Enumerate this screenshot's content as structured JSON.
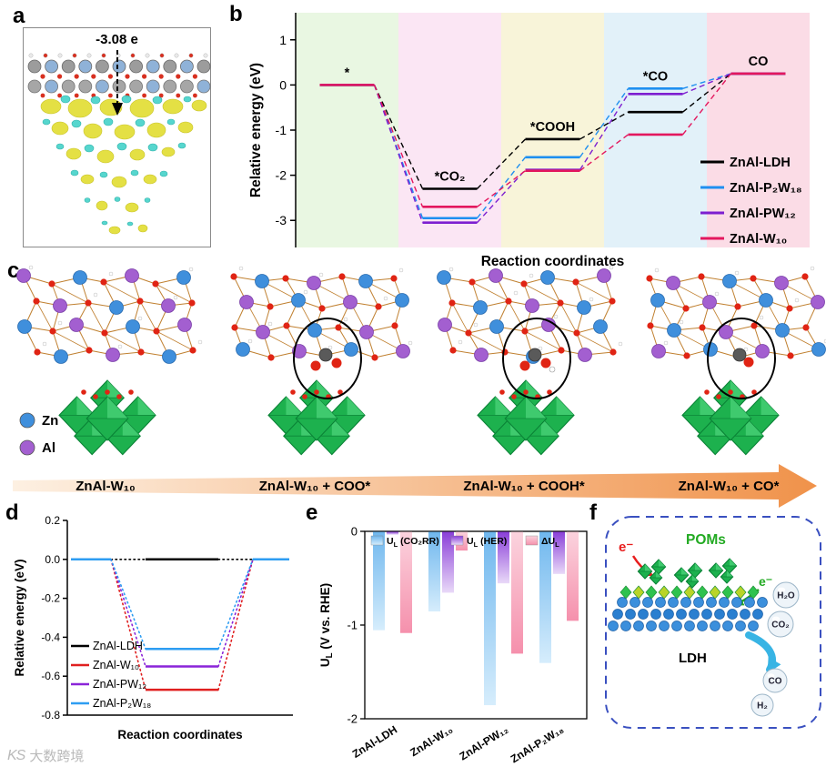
{
  "watermark": {
    "logo": "KS",
    "text": "大数跨境"
  },
  "panels": {
    "a": {
      "label": "a",
      "charge_label": "-3.08 e"
    },
    "b": {
      "label": "b",
      "chart_data": {
        "type": "line",
        "subtype": "reaction-free-energy-steps",
        "ylabel": "Relative energy (eV)",
        "xlabel": "Reaction coordinates",
        "ylim": [
          -3.6,
          1.6
        ],
        "yticks": [
          1,
          0,
          -1,
          -2,
          -3
        ],
        "states": [
          "*",
          "*CO₂",
          "*COOH",
          "*CO",
          "CO"
        ],
        "band_colors": [
          "#e9f7e2",
          "#fbe6f4",
          "#f8f4d9",
          "#e2f1f9",
          "#fbdce6"
        ],
        "legend_position": "lower right",
        "series": [
          {
            "name": "ZnAl-LDH",
            "color": "#000000",
            "values": [
              0,
              -2.3,
              -1.2,
              -0.6,
              0.25
            ]
          },
          {
            "name": "ZnAl-P₂W₁₈",
            "color": "#1e8ff0",
            "values": [
              0,
              -2.95,
              -1.6,
              -0.08,
              0.25
            ]
          },
          {
            "name": "ZnAl-PW₁₂",
            "color": "#7d1fd0",
            "values": [
              0,
              -3.05,
              -1.88,
              -0.2,
              0.25
            ]
          },
          {
            "name": "ZnAl-W₁₀",
            "color": "#e3175e",
            "values": [
              0,
              -2.7,
              -1.9,
              -1.1,
              0.25
            ]
          }
        ]
      }
    },
    "c": {
      "label": "c",
      "legend": [
        {
          "label": "Zn",
          "color": "#3f8fdc"
        },
        {
          "label": "Al",
          "color": "#a35fd0"
        }
      ],
      "structures": [
        {
          "label": "ZnAl-W₁₀",
          "adsorbate": "none"
        },
        {
          "label": "ZnAl-W₁₀ + COO*",
          "adsorbate": "coo"
        },
        {
          "label": "ZnAl-W₁₀ + COOH*",
          "adsorbate": "cooh"
        },
        {
          "label": "ZnAl-W₁₀ + CO*",
          "adsorbate": "co"
        }
      ]
    },
    "d": {
      "label": "d",
      "chart_data": {
        "type": "line",
        "subtype": "adsorption-energy-well",
        "ylabel": "Relative energy (eV)",
        "xlabel": "Reaction coordinates",
        "ylim": [
          -0.8,
          0.2
        ],
        "yticks": [
          0.2,
          0.0,
          -0.2,
          -0.4,
          -0.6,
          -0.8
        ],
        "legend_position": "lower left",
        "series": [
          {
            "name": "ZnAl-LDH",
            "color": "#000000",
            "values": [
              0,
              0.0,
              0
            ]
          },
          {
            "name": "ZnAl-W₁₀",
            "color": "#e02020",
            "values": [
              0,
              -0.67,
              0
            ]
          },
          {
            "name": "ZnAl-PW₁₂",
            "color": "#8a24d8",
            "values": [
              0,
              -0.55,
              0
            ]
          },
          {
            "name": "ZnAl-P₂W₁₈",
            "color": "#2e9df2",
            "values": [
              0,
              -0.46,
              0
            ]
          }
        ]
      }
    },
    "e": {
      "label": "e",
      "chart_data": {
        "type": "bar",
        "ylabel": "UL (V vs. RHE)",
        "ylabel_parts": {
          "pre": "U",
          "sub": "L",
          "post": " (V vs. RHE)"
        },
        "ylim": [
          -2,
          0
        ],
        "yticks": [
          0,
          -1,
          -2
        ],
        "categories": [
          "ZnAl-LDH",
          "ZnAl-W₁₀",
          "ZnAl-PW₁₂",
          "ZnAl-P₂W₁₈"
        ],
        "series": [
          {
            "name": "UL (CO₂RR)",
            "name_parts": {
              "pre": "U",
              "sub": "L",
              "post": " (CO₂RR)"
            },
            "color_top": "#6fb7ee",
            "color_bottom": "#d6edfc",
            "values": [
              -1.05,
              -0.85,
              -1.85,
              -1.4
            ]
          },
          {
            "name": "UL (HER)",
            "name_parts": {
              "pre": "U",
              "sub": "L",
              "post": " (HER)"
            },
            "color_top": "#8a3fd8",
            "color_bottom": "#e9d9f8",
            "values": [
              -0.03,
              -0.65,
              -0.55,
              -0.45
            ]
          },
          {
            "name": "ΔUL",
            "name_parts": {
              "pre": "ΔU",
              "sub": "L",
              "post": ""
            },
            "color_top": "#fbd3de",
            "color_bottom": "#f590ac",
            "values": [
              -1.08,
              -0.2,
              -1.3,
              -0.95
            ]
          }
        ]
      }
    },
    "f": {
      "label": "f",
      "labels": {
        "electron_in": "e⁻",
        "electron_out": "e⁻",
        "poms": "POMs",
        "ldh": "LDH",
        "molecules_in": [
          "H₂O",
          "CO₂"
        ],
        "molecules_out": [
          "CO",
          "H₂"
        ]
      }
    }
  }
}
